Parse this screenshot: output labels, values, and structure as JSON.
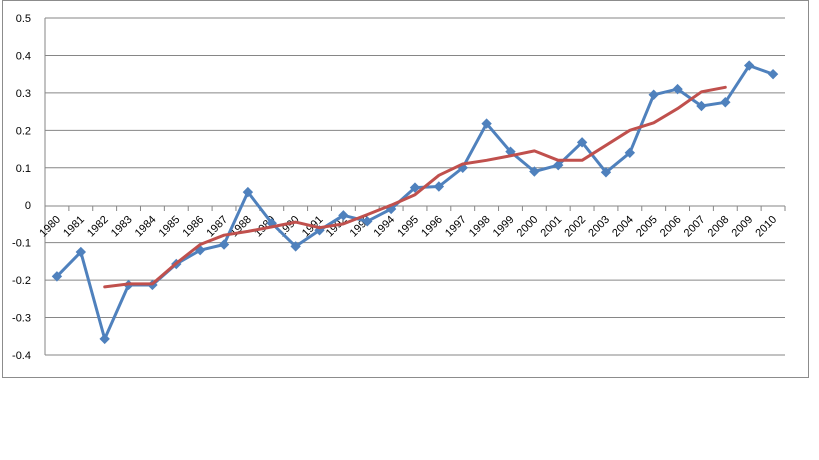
{
  "chart_data": {
    "type": "line",
    "title": "",
    "xlabel": "",
    "ylabel": "",
    "categories": [
      "1980",
      "1981",
      "1982",
      "1983",
      "1984",
      "1985",
      "1986",
      "1987",
      "1988",
      "1989",
      "1990",
      "1991",
      "1992",
      "1993",
      "1994",
      "1995",
      "1996",
      "1997",
      "1998",
      "1999",
      "2000",
      "2001",
      "2002",
      "2003",
      "2004",
      "2005",
      "2006",
      "2007",
      "2008",
      "2009",
      "2010"
    ],
    "ylim": [
      -0.4,
      0.5
    ],
    "yticks": [
      "-0.4",
      "-0.3",
      "-0.2",
      "-0.1",
      "0",
      "0.1",
      "0.2",
      "0.3",
      "0.4",
      "0.5"
    ],
    "grid": true,
    "legend": "none",
    "series": [
      {
        "color": "#4f81bd",
        "marker": "diamond",
        "values": [
          -0.19,
          -0.125,
          -0.357,
          -0.213,
          -0.213,
          -0.157,
          -0.12,
          -0.105,
          0.035,
          -0.048,
          -0.11,
          -0.067,
          -0.027,
          -0.043,
          -0.01,
          0.047,
          0.05,
          0.1,
          0.218,
          0.143,
          0.09,
          0.107,
          0.168,
          0.088,
          0.14,
          0.295,
          0.31,
          0.265,
          0.275,
          0.373,
          0.35
        ]
      },
      {
        "color": "#c0504d",
        "marker": "none",
        "values": [
          null,
          null,
          -0.218,
          -0.21,
          -0.21,
          -0.155,
          -0.105,
          -0.08,
          -0.07,
          -0.058,
          -0.045,
          -0.06,
          -0.05,
          -0.025,
          0.0,
          0.028,
          0.08,
          0.11,
          0.12,
          0.132,
          0.145,
          0.12,
          0.12,
          0.16,
          0.2,
          0.22,
          0.258,
          0.303,
          0.315,
          null,
          null
        ]
      }
    ]
  }
}
